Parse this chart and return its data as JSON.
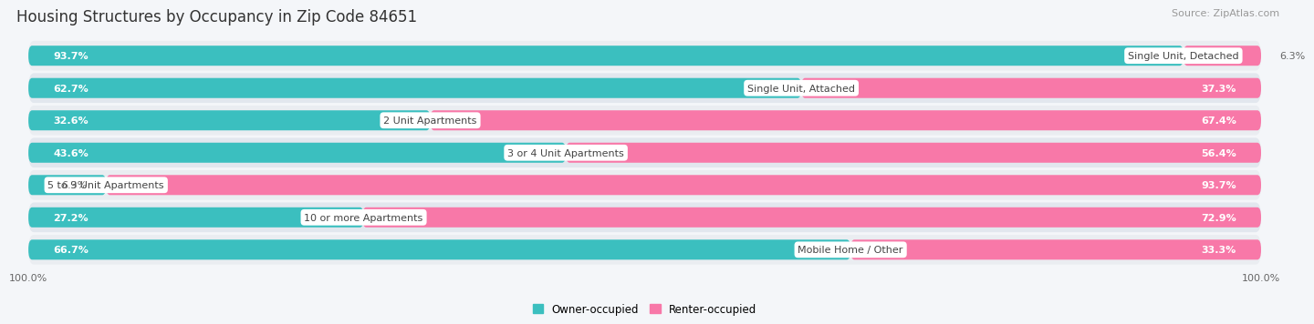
{
  "title": "Housing Structures by Occupancy in Zip Code 84651",
  "source": "Source: ZipAtlas.com",
  "categories": [
    "Single Unit, Detached",
    "Single Unit, Attached",
    "2 Unit Apartments",
    "3 or 4 Unit Apartments",
    "5 to 9 Unit Apartments",
    "10 or more Apartments",
    "Mobile Home / Other"
  ],
  "owner_pct": [
    93.7,
    62.7,
    32.6,
    43.6,
    6.3,
    27.2,
    66.7
  ],
  "renter_pct": [
    6.3,
    37.3,
    67.4,
    56.4,
    93.7,
    72.9,
    33.3
  ],
  "owner_color": "#3BBFBF",
  "renter_color": "#F878A8",
  "row_bg_light": "#EAEEF2",
  "row_bg_dark": "#DDE3EA",
  "fig_bg": "#F4F6F9",
  "title_color": "#333333",
  "source_color": "#999999",
  "label_color": "#444444",
  "white_text": "#FFFFFF",
  "dark_text": "#666666",
  "title_fontsize": 12,
  "source_fontsize": 8,
  "cat_fontsize": 8,
  "pct_fontsize": 8,
  "legend_fontsize": 8.5
}
